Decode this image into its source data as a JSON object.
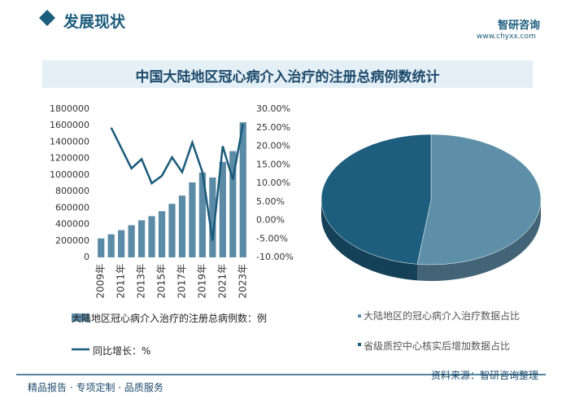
{
  "header": {
    "title": "发展现状",
    "brand": "智研咨询",
    "url": "www.chyxx.com"
  },
  "chart_data": [
    {
      "type": "combo",
      "title": "中国大陆地区冠心病介入治疗的注册总病例数统计",
      "categories": [
        "2009年",
        null,
        "2011年",
        null,
        "2013年",
        null,
        "2015年",
        null,
        "2017年",
        null,
        "2019年",
        null,
        "2021年",
        null,
        "2023年"
      ],
      "series": [
        {
          "name": "大陆地区冠心病介入治疗的注册总病例数：例",
          "type": "bar",
          "color": "#5b8ba6",
          "values": [
            230000,
            280000,
            330000,
            390000,
            450000,
            500000,
            560000,
            650000,
            750000,
            910000,
            1030000,
            970000,
            1160000,
            1290000,
            1640000
          ]
        },
        {
          "name": "同比增长：%",
          "type": "line",
          "axis": "y2",
          "color": "#1a5a7a",
          "values": [
            null,
            25,
            19.5,
            14,
            16.5,
            10,
            12,
            17,
            13,
            21,
            13,
            -5.5,
            20,
            11,
            26
          ]
        }
      ],
      "ylim": [
        0,
        1800000
      ],
      "yticks": [
        0,
        200000,
        400000,
        600000,
        800000,
        1000000,
        1200000,
        1400000,
        1600000,
        1800000
      ],
      "y2lim": [
        -10,
        30
      ],
      "y2ticks": [
        {
          "value": -10,
          "label": "-10.00%"
        },
        {
          "value": -5,
          "label": "-5.00%"
        },
        {
          "value": 0,
          "label": "0.00%"
        },
        {
          "value": 5,
          "label": "5.00%"
        },
        {
          "value": 10,
          "label": "10.00%"
        },
        {
          "value": 15,
          "label": "15.00%"
        },
        {
          "value": 20,
          "label": "20.00%"
        },
        {
          "value": 25,
          "label": "25.00%"
        },
        {
          "value": 30,
          "label": "30.00%"
        }
      ]
    },
    {
      "type": "pie",
      "categories": [
        "大陆地区的冠心病介入治疗数据占比",
        "省级质控中心核实后增加数据占比"
      ],
      "values": [
        52,
        48
      ],
      "colors": [
        "#5e8fa8",
        "#1d5d7e"
      ]
    }
  ],
  "footer": {
    "slogan": "精品报告 · 专项定制 · 品质服务",
    "source": "资料来源：智研咨询整理"
  }
}
